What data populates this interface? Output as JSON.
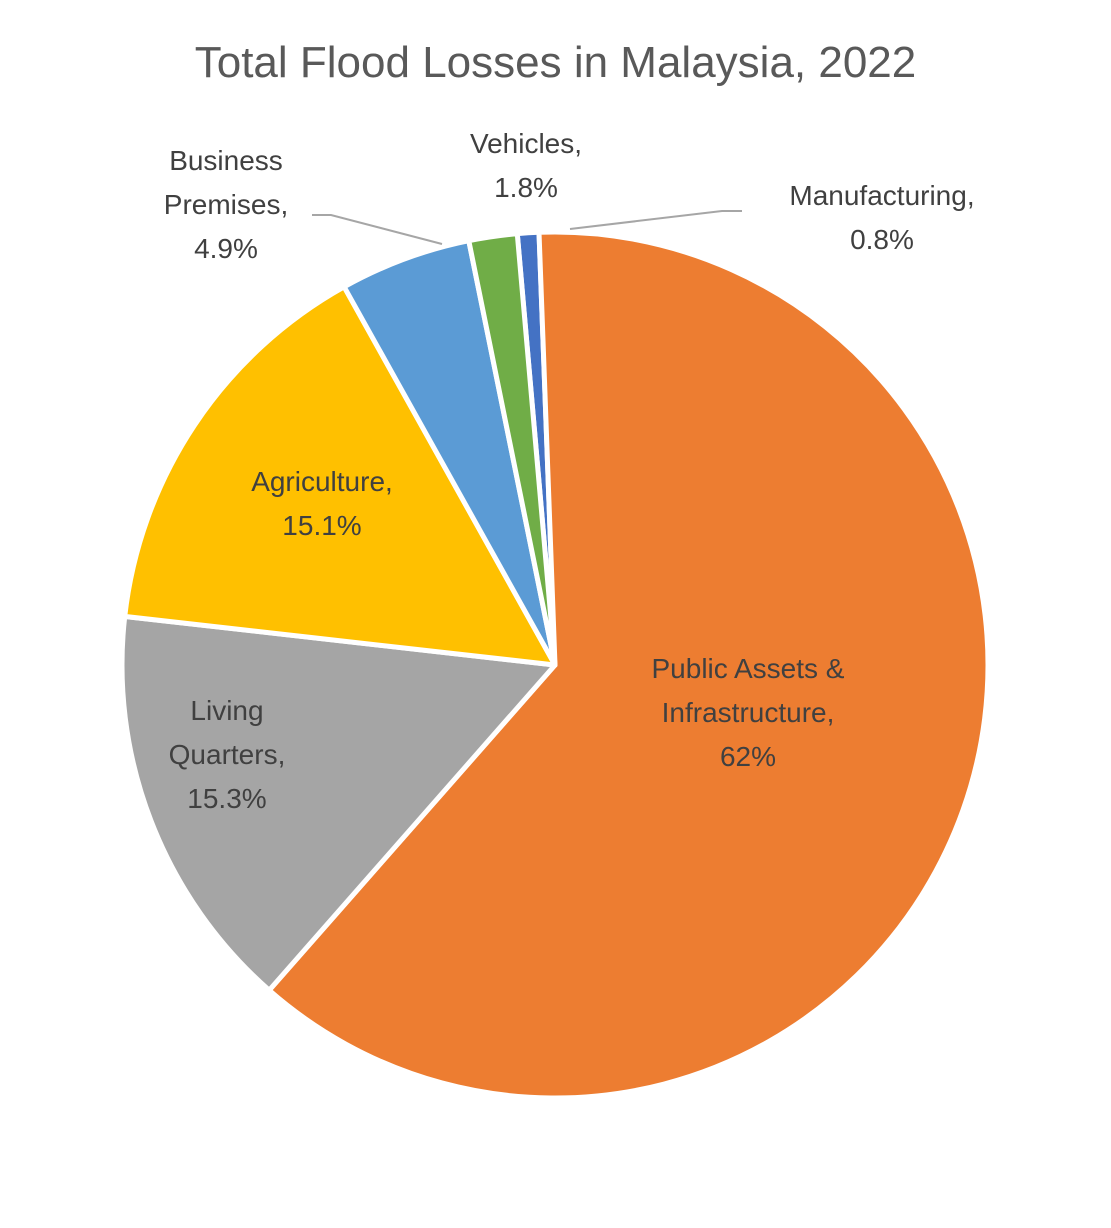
{
  "chart_data": {
    "type": "pie",
    "title": "Total Flood Losses in Malaysia, 2022",
    "slices": [
      {
        "label_lines": [
          "Manufacturing,"
        ],
        "value_label": "0.8%",
        "value": 0.8,
        "color": "#4472C4"
      },
      {
        "label_lines": [
          "Public Assets &",
          "Infrastructure,"
        ],
        "value_label": "62%",
        "value": 62.0,
        "color": "#ED7D31"
      },
      {
        "label_lines": [
          "Living",
          "Quarters,"
        ],
        "value_label": "15.3%",
        "value": 15.3,
        "color": "#A5A5A5"
      },
      {
        "label_lines": [
          "Agriculture,"
        ],
        "value_label": "15.1%",
        "value": 15.1,
        "color": "#FFC000"
      },
      {
        "label_lines": [
          "Business",
          "Premises,"
        ],
        "value_label": "4.9%",
        "value": 4.9,
        "color": "#5B9BD5"
      },
      {
        "label_lines": [
          "Vehicles,"
        ],
        "value_label": "1.8%",
        "value": 1.8,
        "color": "#70AD47"
      }
    ],
    "legend": "none",
    "leader_line_color": "#A6A6A6"
  }
}
